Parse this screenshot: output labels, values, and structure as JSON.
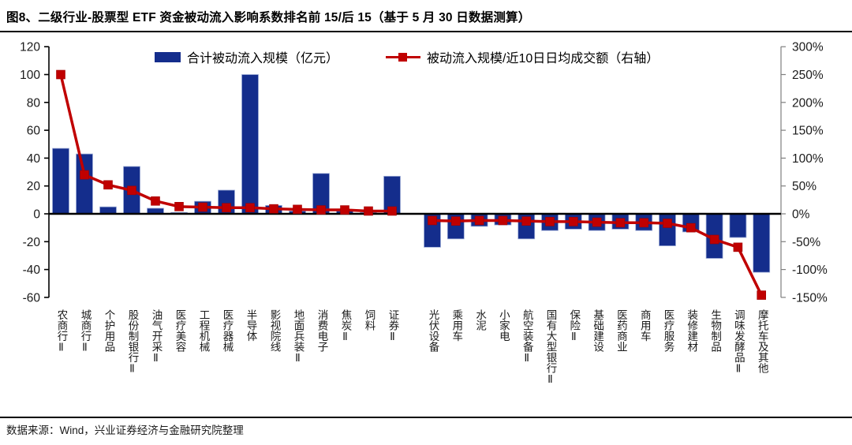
{
  "title": "图8、二级行业-股票型 ETF 资金被动流入影响系数排名前 15/后 15（基于 5 月 30 日数据测算）",
  "source": "数据来源：Wind，兴业证券经济与金融研究院整理",
  "colors": {
    "bar": "#142D8C",
    "bar_edge": "#9DACD6",
    "line": "#C00000",
    "axis_left": "#000000",
    "axis_right": "#7F7F7F",
    "zero_line": "#000000",
    "tick_text": "#1a1a1a"
  },
  "chart_data": {
    "type": "bar",
    "subtype": "combo-bar-line-dual-axis",
    "grid": false,
    "legend_position": "top-inside",
    "categories": [
      "农商行Ⅱ",
      "城商行Ⅱ",
      "个护用品",
      "股份制银行Ⅱ",
      "油气开采Ⅱ",
      "医疗美容",
      "工程机械",
      "医疗器械",
      "半导体",
      "影视院线",
      "地面兵装Ⅱ",
      "消费电子",
      "焦炭Ⅱ",
      "饲料",
      "证券Ⅱ",
      "光伏设备",
      "乘用车",
      "水泥",
      "小家电",
      "航空装备Ⅱ",
      "国有大型银行Ⅱ",
      "保险Ⅱ",
      "基础建设",
      "医药商业",
      "商用车",
      "医疗服务",
      "装修建材",
      "生物制品",
      "调味发酵品Ⅱ",
      "摩托车及其他"
    ],
    "series": [
      {
        "name": "合计被动流入规模（亿元）",
        "type": "bar",
        "axis": "left",
        "values": [
          47,
          43,
          5,
          34,
          4,
          1,
          9,
          17,
          100,
          6,
          2,
          29,
          2,
          1,
          27,
          -24,
          -18,
          -9,
          -8,
          -18,
          -12,
          -11,
          -12,
          -11,
          -12,
          -23,
          -13,
          -32,
          -17,
          -42
        ]
      },
      {
        "name": "被动流入规模/近10日日均成交额（右轴）",
        "type": "line",
        "axis": "right",
        "unit": "%",
        "values": [
          250,
          70,
          52,
          42,
          23,
          13,
          12,
          11,
          11,
          9,
          8,
          7,
          7,
          5,
          5,
          -12,
          -13,
          -12,
          -12,
          -13,
          -14,
          -14,
          -15,
          -16,
          -16,
          -17,
          -25,
          -46,
          -60,
          -146
        ]
      }
    ],
    "left_axis": {
      "label": "",
      "ticks": [
        120,
        100,
        80,
        60,
        40,
        20,
        0,
        -20,
        -40,
        -60
      ],
      "range": [
        -60,
        120
      ]
    },
    "right_axis": {
      "label": "",
      "tick_labels": [
        "300%",
        "250%",
        "200%",
        "150%",
        "100%",
        "50%",
        "0%",
        "-50%",
        "-100%",
        "-150%"
      ],
      "range_pct": [
        -150,
        300
      ]
    },
    "group_split_index": 15
  }
}
